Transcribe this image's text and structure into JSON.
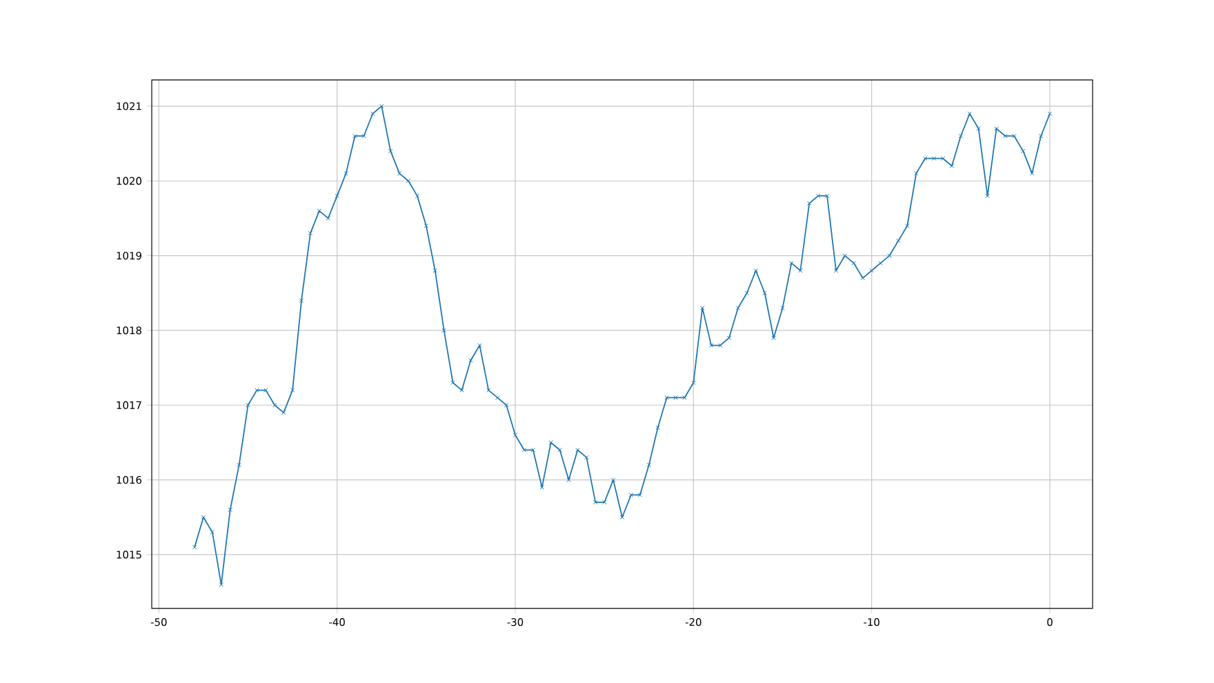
{
  "chart_data": {
    "type": "line",
    "x": [
      -48,
      -47.5,
      -47,
      -46.5,
      -46,
      -45.5,
      -45,
      -44.5,
      -44,
      -43.5,
      -43,
      -42.5,
      -42,
      -41.5,
      -41,
      -40.5,
      -40,
      -39.5,
      -39,
      -38.5,
      -38,
      -37.5,
      -37,
      -36.5,
      -36,
      -35.5,
      -35,
      -34.5,
      -34,
      -33.5,
      -33,
      -32.5,
      -32,
      -31.5,
      -31,
      -30.5,
      -30,
      -29.5,
      -29,
      -28.5,
      -28,
      -27.5,
      -27,
      -26.5,
      -26,
      -25.5,
      -25,
      -24.5,
      -24,
      -23.5,
      -23,
      -22.5,
      -22,
      -21.5,
      -21,
      -20.5,
      -20,
      -19.5,
      -19,
      -18.5,
      -18,
      -17.5,
      -17,
      -16.5,
      -16,
      -15.5,
      -15,
      -14.5,
      -14,
      -13.5,
      -13,
      -12.5,
      -12,
      -11.5,
      -11,
      -10.5,
      -10,
      -9.5,
      -9,
      -8.5,
      -8,
      -7.5,
      -7,
      -6.5,
      -6,
      -5.5,
      -5,
      -4.5,
      -4,
      -3.5,
      -3,
      -2.5,
      -2,
      -1.5,
      -1,
      -0.5,
      0
    ],
    "values": [
      1015.1,
      1015.5,
      1015.3,
      1014.6,
      1015.6,
      1016.2,
      1017.0,
      1017.2,
      1017.2,
      1017.0,
      1016.9,
      1017.2,
      1018.4,
      1019.3,
      1019.6,
      1019.5,
      1019.8,
      1020.1,
      1020.6,
      1020.6,
      1020.9,
      1021.0,
      1020.4,
      1020.1,
      1020.0,
      1019.8,
      1019.4,
      1018.8,
      1018.0,
      1017.3,
      1017.2,
      1017.6,
      1017.8,
      1017.2,
      1017.1,
      1017.0,
      1016.6,
      1016.4,
      1016.4,
      1015.9,
      1016.5,
      1016.4,
      1016.0,
      1016.4,
      1016.3,
      1015.7,
      1015.7,
      1016.0,
      1015.5,
      1015.8,
      1015.8,
      1016.2,
      1016.7,
      1017.1,
      1017.1,
      1017.1,
      1017.3,
      1018.3,
      1017.8,
      1017.8,
      1017.9,
      1018.3,
      1018.5,
      1018.8,
      1018.5,
      1017.9,
      1018.3,
      1018.9,
      1018.8,
      1019.7,
      1019.8,
      1019.8,
      1018.8,
      1019.0,
      1018.9,
      1018.7,
      1018.8,
      1018.9,
      1019.0,
      1019.2,
      1019.4,
      1020.1,
      1020.3,
      1020.3,
      1020.3,
      1020.2,
      1020.6,
      1020.9,
      1020.7,
      1019.8,
      1020.7,
      1020.6,
      1020.6,
      1020.4,
      1020.1,
      1020.6,
      1020.9
    ],
    "color": "#1f77b4",
    "marker": "cross",
    "line_style": "solid",
    "grid": true,
    "xlim": [
      -50.4,
      2.4
    ],
    "ylim": [
      1014.28,
      1021.35
    ],
    "xticks": [
      -50,
      -40,
      -30,
      -20,
      -10,
      0
    ],
    "yticks": [
      1015,
      1016,
      1017,
      1018,
      1019,
      1020,
      1021
    ]
  }
}
